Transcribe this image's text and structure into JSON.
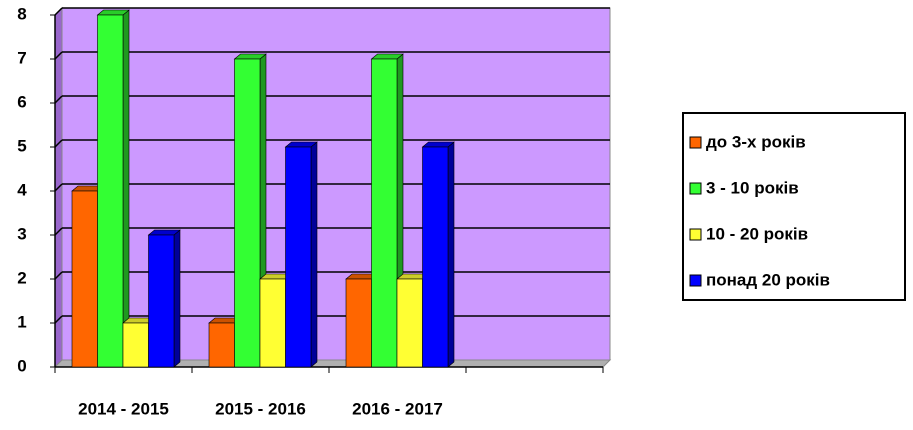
{
  "chart_data": {
    "type": "bar3d",
    "categories": [
      "2014 - 2015",
      "2015 - 2016",
      "2016 - 2017",
      null
    ],
    "series": [
      {
        "name": "до 3-х років",
        "color": "#ff6600",
        "values": [
          4,
          1,
          2,
          null
        ]
      },
      {
        "name": "3 - 10 років",
        "color": "#33ff33",
        "values": [
          8,
          7,
          7,
          null
        ]
      },
      {
        "name": "10 - 20 років",
        "color": "#ffff33",
        "values": [
          1,
          2,
          2,
          null
        ]
      },
      {
        "name": "понад 20 років",
        "color": "#0000ff",
        "values": [
          3,
          5,
          5,
          null
        ]
      }
    ],
    "ylim": [
      0,
      8
    ],
    "yticks": [
      0,
      1,
      2,
      3,
      4,
      5,
      6,
      7,
      8
    ],
    "grid": true,
    "legend": "right"
  }
}
